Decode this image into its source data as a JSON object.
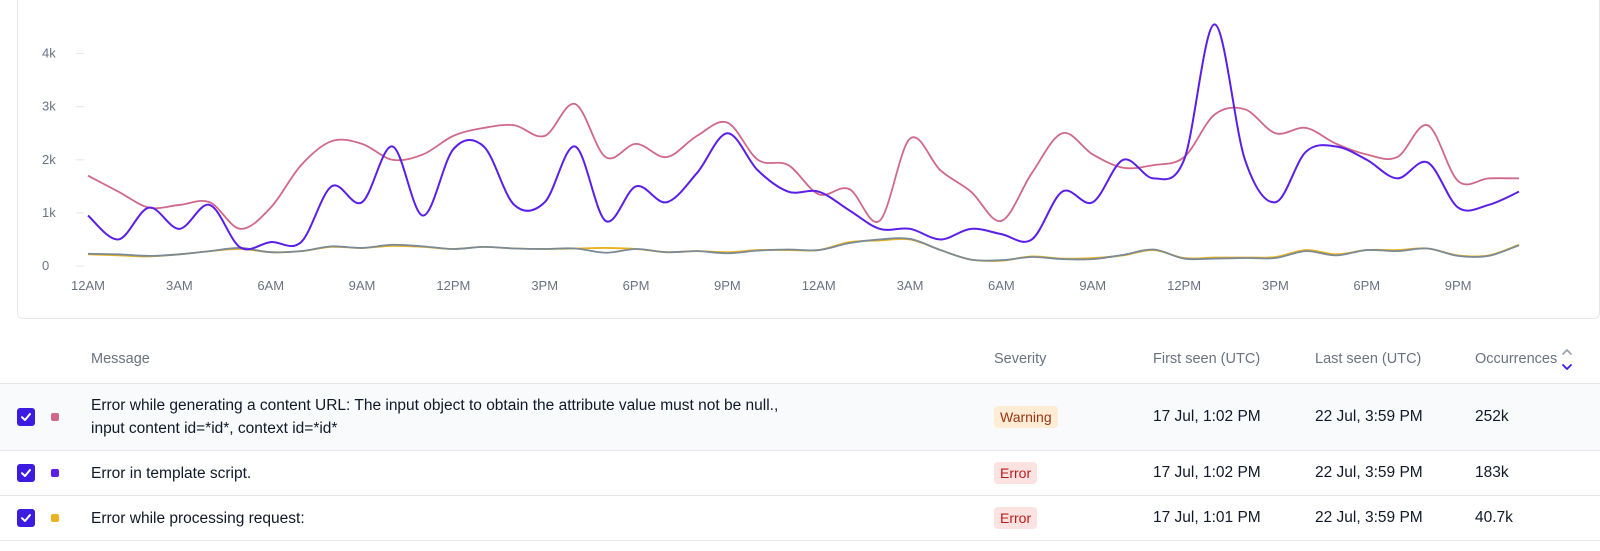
{
  "chart_data": {
    "type": "line",
    "x_ticks": [
      "12AM",
      "3AM",
      "6AM",
      "9AM",
      "12PM",
      "3PM",
      "6PM",
      "9PM",
      "12AM",
      "3AM",
      "6AM",
      "9AM",
      "12PM",
      "3PM",
      "6PM",
      "9PM"
    ],
    "y_ticks": [
      "0",
      "1k",
      "2k",
      "3k",
      "4k"
    ],
    "ylim": [
      0,
      4500
    ],
    "x_range_hours": [
      0,
      47
    ],
    "grid": false,
    "series": [
      {
        "color": "#d0688a",
        "values": [
          1700,
          1400,
          1100,
          1150,
          1200,
          700,
          1100,
          1900,
          2350,
          2300,
          2000,
          2100,
          2450,
          2600,
          2650,
          2450,
          3050,
          2050,
          2300,
          2050,
          2450,
          2700,
          2000,
          1900,
          1350,
          1450,
          850,
          2400,
          1800,
          1400,
          850,
          1750,
          2500,
          2100,
          1850,
          1900,
          2050,
          2850,
          2950,
          2500,
          2600,
          2300,
          2100,
          2050,
          2650,
          1600,
          1650,
          1650
        ]
      },
      {
        "color": "#5b1ee8",
        "values": [
          950,
          500,
          1100,
          700,
          1150,
          350,
          450,
          450,
          1500,
          1200,
          2250,
          950,
          2200,
          2250,
          1150,
          1200,
          2250,
          850,
          1500,
          1200,
          1750,
          2500,
          1800,
          1400,
          1400,
          1050,
          700,
          700,
          500,
          700,
          600,
          500,
          1400,
          1200,
          2000,
          1650,
          2000,
          4550,
          2000,
          1200,
          2150,
          2250,
          2000,
          1650,
          1950,
          1100,
          1150,
          1400
        ]
      },
      {
        "color": "#e9b31f",
        "values": [
          220,
          200,
          180,
          220,
          280,
          320,
          260,
          280,
          360,
          340,
          380,
          360,
          320,
          360,
          330,
          320,
          330,
          340,
          320,
          260,
          280,
          260,
          300,
          300,
          300,
          450,
          480,
          500,
          300,
          120,
          100,
          180,
          140,
          150,
          200,
          300,
          150,
          160,
          160,
          170,
          300,
          220,
          300,
          300,
          330,
          200,
          200,
          400
        ]
      },
      {
        "color": "#7a8a96",
        "values": [
          230,
          220,
          190,
          220,
          280,
          340,
          260,
          280,
          370,
          340,
          400,
          370,
          320,
          360,
          330,
          320,
          330,
          250,
          320,
          260,
          280,
          240,
          290,
          310,
          300,
          430,
          500,
          510,
          300,
          120,
          110,
          170,
          130,
          130,
          210,
          310,
          140,
          140,
          150,
          150,
          280,
          200,
          300,
          280,
          330,
          190,
          190,
          390
        ]
      }
    ]
  },
  "table": {
    "headers": {
      "message": "Message",
      "severity": "Severity",
      "first_seen": "First seen (UTC)",
      "last_seen": "Last seen (UTC)",
      "occurrences": "Occurrences"
    },
    "rows": [
      {
        "checked": true,
        "color": "#d0688a",
        "message_line1": "Error while generating a content URL: The input object to obtain the attribute value must not be null.,",
        "message_line2": "input content id=*id*, context id=*id*",
        "severity": "Warning",
        "first_seen": "17 Jul, 1:02 PM",
        "last_seen": "22 Jul, 3:59 PM",
        "occurrences": "252k"
      },
      {
        "checked": true,
        "color": "#5b1ee8",
        "message_line1": "Error in template script.",
        "severity": "Error",
        "first_seen": "17 Jul, 1:02 PM",
        "last_seen": "22 Jul, 3:59 PM",
        "occurrences": "183k"
      },
      {
        "checked": true,
        "color": "#e9b31f",
        "message_line1": "Error while processing request:",
        "severity": "Error",
        "first_seen": "17 Jul, 1:01 PM",
        "last_seen": "22 Jul, 3:59 PM",
        "occurrences": "40.7k"
      }
    ]
  },
  "icons": {
    "checkbox": "check-icon",
    "sort": "sort-descending-icon"
  }
}
